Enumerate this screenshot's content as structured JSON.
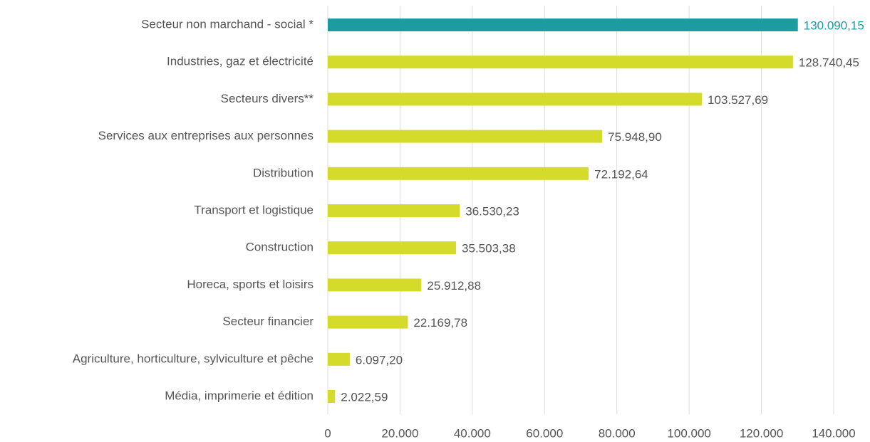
{
  "chart_data": {
    "type": "hbar",
    "categories": [
      "Secteur non marchand - social *",
      "Industries, gaz et électricité",
      "Secteurs divers**",
      "Services aux entreprises aux personnes",
      "Distribution",
      "Transport et logistique",
      "Construction",
      "Horeca, sports et loisirs",
      "Secteur financier",
      "Agriculture, horticulture, sylviculture et pêche",
      "Média, imprimerie et édition"
    ],
    "values": [
      130090.15,
      128740.45,
      103527.69,
      75948.9,
      72192.64,
      36530.23,
      35503.38,
      25912.88,
      22169.78,
      6097.2,
      2022.59
    ],
    "value_labels": [
      "130.090,15",
      "128.740,45",
      "103.527,69",
      "75.948,90",
      "72.192,64",
      "36.530,23",
      "35.503,38",
      "25.912,88",
      "22.169,78",
      "6.097,20",
      "2.022,59"
    ],
    "colors": [
      "#1e9aa3",
      "#d4db2b",
      "#d4db2b",
      "#d4db2b",
      "#d4db2b",
      "#d4db2b",
      "#d4db2b",
      "#d4db2b",
      "#d4db2b",
      "#d4db2b",
      "#d4db2b"
    ],
    "label_colors": [
      "#1e9aa3",
      "#555555",
      "#555555",
      "#555555",
      "#555555",
      "#555555",
      "#555555",
      "#555555",
      "#555555",
      "#555555",
      "#555555"
    ],
    "xlim": [
      0,
      140000
    ],
    "xticks": [
      0,
      {
        "value": 20000,
        "label": "20.000"
      },
      {
        "value": 40000,
        "label": "40.000"
      },
      {
        "value": 60000,
        "label": "60.000"
      },
      {
        "value": 80000,
        "label": "80.000"
      },
      {
        "value": 100000,
        "label": "100.000"
      },
      {
        "value": 120000,
        "label": "120.000"
      },
      {
        "value": 140000,
        "label": "140.000"
      }
    ],
    "grid": true
  }
}
